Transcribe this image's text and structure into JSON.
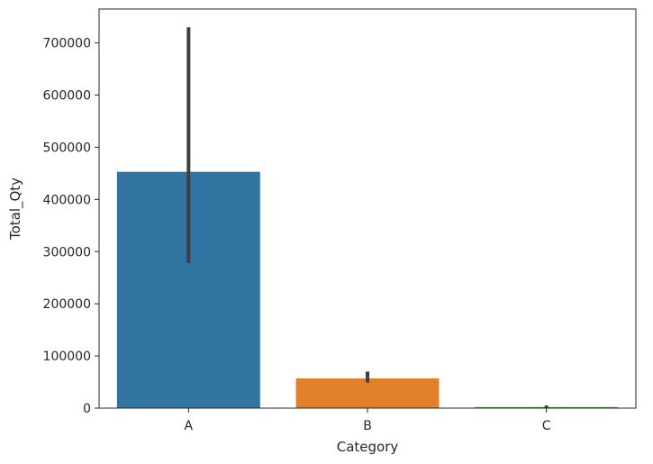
{
  "chart_data": {
    "type": "bar",
    "title": "",
    "xlabel": "Category",
    "ylabel": "Total_Qty",
    "categories": [
      "A",
      "B",
      "C"
    ],
    "values": [
      453000,
      57000,
      2000
    ],
    "error_bars": [
      {
        "low": 278000,
        "high": 730000
      },
      {
        "low": 49000,
        "high": 70000
      },
      {
        "low": 0,
        "high": 5000
      }
    ],
    "colors": [
      "#3274a1",
      "#e1812c",
      "#3a923a"
    ],
    "error_color": "#3f3f3f",
    "ylim": [
      0,
      765000
    ],
    "yticks": [
      0,
      100000,
      200000,
      300000,
      400000,
      500000,
      600000,
      700000
    ],
    "ytick_labels": [
      "0",
      "100000",
      "200000",
      "300000",
      "400000",
      "500000",
      "600000",
      "700000"
    ],
    "grid": false,
    "legend": "none"
  }
}
